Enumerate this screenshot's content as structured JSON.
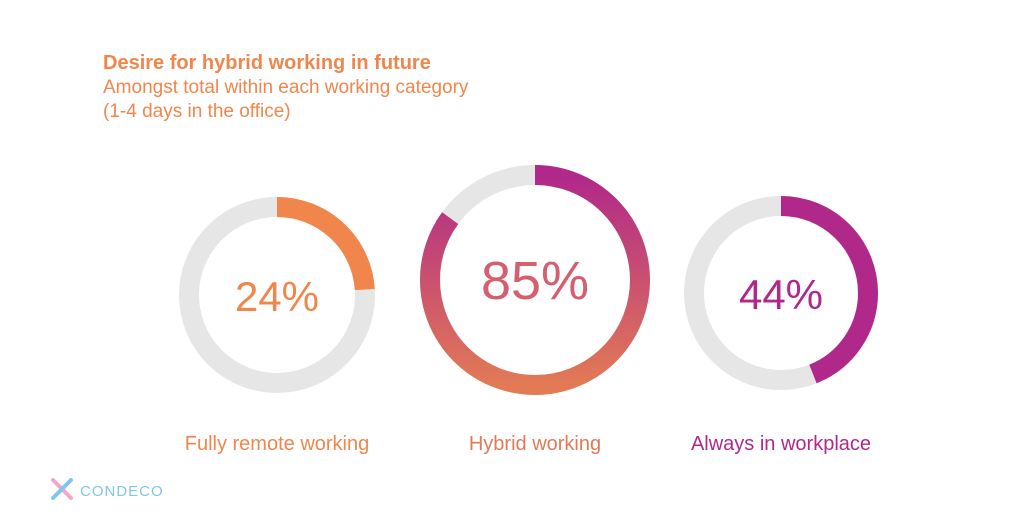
{
  "header": {
    "title": "Desire for hybrid working in future",
    "subtitle_line1": "Amongst total within each working category",
    "subtitle_line2": "(1-4 days in the office)"
  },
  "brand": {
    "name": "CONDECO",
    "icon": "condeco-logo-icon"
  },
  "colors": {
    "track": "#e6e6e6",
    "orange": "#f0864b",
    "magenta": "#b0288a",
    "brand": "#7ec6ea"
  },
  "chart_data": {
    "type": "donut",
    "series": [
      {
        "category": "Fully remote working",
        "value": 24,
        "label": "24%",
        "color": "#f0864b"
      },
      {
        "category": "Hybrid working",
        "value": 85,
        "label": "85%",
        "gradient": [
          "#e27a55",
          "#b0288a"
        ]
      },
      {
        "category": "Always in workplace",
        "value": 44,
        "label": "44%",
        "color": "#b0288a"
      }
    ]
  }
}
